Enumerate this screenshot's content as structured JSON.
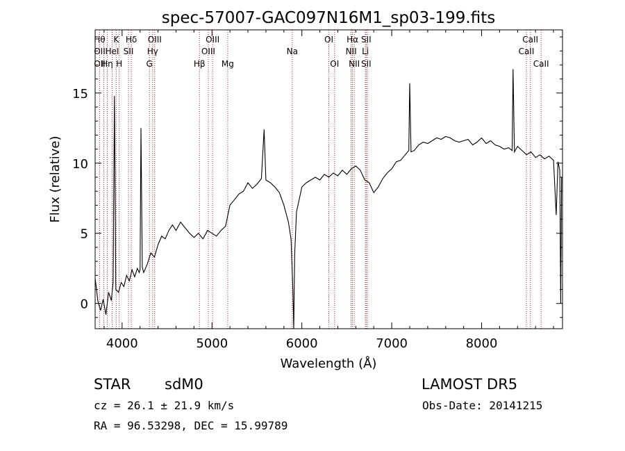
{
  "chart_data": {
    "type": "line",
    "title": "spec-57007-GAC097N16M1_sp03-199.fits",
    "xlabel": "Wavelength (Å)",
    "ylabel": "Flux (relative)",
    "xlim": [
      3700,
      8900
    ],
    "ylim": [
      -1.8,
      19.5
    ],
    "xticks": [
      4000,
      5000,
      6000,
      7000,
      8000
    ],
    "yticks": [
      0,
      5,
      10,
      15
    ],
    "grid": false,
    "series": [
      {
        "values_x": [
          3700,
          3730,
          3760,
          3790,
          3820,
          3850,
          3880,
          3900,
          3915,
          3930,
          3960,
          3990,
          4020,
          4050,
          4080,
          4110,
          4140,
          4170,
          4190,
          4200,
          4210,
          4225,
          4240,
          4280,
          4320,
          4360,
          4400,
          4440,
          4480,
          4520,
          4560,
          4600,
          4650,
          4700,
          4750,
          4800,
          4850,
          4900,
          4950,
          5000,
          5050,
          5100,
          5150,
          5200,
          5250,
          5300,
          5350,
          5400,
          5450,
          5500,
          5550,
          5580,
          5600,
          5650,
          5700,
          5750,
          5800,
          5850,
          5880,
          5900,
          5910,
          5920,
          5940,
          5970,
          6000,
          6050,
          6100,
          6150,
          6200,
          6250,
          6300,
          6350,
          6400,
          6450,
          6500,
          6550,
          6600,
          6650,
          6700,
          6750,
          6800,
          6850,
          6900,
          6950,
          7000,
          7050,
          7100,
          7150,
          7190,
          7200,
          7215,
          7250,
          7300,
          7350,
          7400,
          7450,
          7500,
          7550,
          7600,
          7650,
          7700,
          7750,
          7800,
          7850,
          7900,
          7950,
          8000,
          8050,
          8100,
          8150,
          8200,
          8250,
          8300,
          8340,
          8350,
          8365,
          8400,
          8450,
          8500,
          8550,
          8600,
          8650,
          8700,
          8750,
          8800,
          8830,
          8850,
          8870,
          8880,
          8890
        ],
        "values_y": [
          1.8,
          0.2,
          -0.5,
          0.3,
          -0.8,
          0.8,
          0.2,
          1.5,
          14.8,
          1.0,
          0.8,
          1.5,
          1.2,
          2.0,
          1.6,
          2.4,
          1.9,
          2.5,
          2.2,
          2.4,
          12.5,
          2.6,
          2.2,
          2.8,
          3.6,
          3.3,
          4.2,
          4.8,
          4.6,
          5.2,
          5.6,
          5.2,
          5.8,
          5.4,
          5.0,
          4.7,
          5.0,
          4.6,
          5.2,
          5.0,
          4.8,
          5.2,
          5.5,
          7.0,
          7.4,
          7.8,
          8.0,
          8.6,
          8.2,
          8.5,
          8.9,
          12.4,
          8.8,
          8.6,
          8.3,
          7.9,
          7.0,
          5.8,
          4.6,
          1.0,
          -1.8,
          3.4,
          6.5,
          7.4,
          8.3,
          8.6,
          8.8,
          9.0,
          8.8,
          9.2,
          9.0,
          9.3,
          9.1,
          9.5,
          9.2,
          9.6,
          9.8,
          9.5,
          8.8,
          8.6,
          7.9,
          8.3,
          8.9,
          9.3,
          9.6,
          10.1,
          10.2,
          10.6,
          10.9,
          15.7,
          10.8,
          10.9,
          11.3,
          11.5,
          11.4,
          11.6,
          11.8,
          11.7,
          11.9,
          11.8,
          11.6,
          11.5,
          11.6,
          11.7,
          11.3,
          11.5,
          11.8,
          11.4,
          11.6,
          11.3,
          11.2,
          11.0,
          11.1,
          10.9,
          16.7,
          10.8,
          11.2,
          10.9,
          10.6,
          10.8,
          10.4,
          10.6,
          10.3,
          10.5,
          10.2,
          6.3,
          10.1,
          9.5,
          0.0,
          9.0
        ]
      }
    ],
    "line_markers": [
      {
        "x": 3750,
        "labels": [
          "Hθ",
          "OII",
          "OII"
        ],
        "rows": [
          0,
          1,
          2
        ]
      },
      {
        "x": 3797,
        "labels": []
      },
      {
        "x": 3835,
        "labels": [
          "Hη"
        ],
        "rows": [
          2
        ]
      },
      {
        "x": 3889,
        "labels": [
          "HeI"
        ],
        "rows": [
          1
        ]
      },
      {
        "x": 3934,
        "labels": [
          "K"
        ],
        "rows": [
          0
        ]
      },
      {
        "x": 3968,
        "labels": [
          "H"
        ],
        "rows": [
          2
        ]
      },
      {
        "x": 4071,
        "labels": [
          "SII"
        ],
        "rows": [
          1
        ]
      },
      {
        "x": 4102,
        "labels": [
          "Hδ"
        ],
        "rows": [
          0
        ]
      },
      {
        "x": 4304,
        "labels": [
          "G"
        ],
        "rows": [
          2
        ]
      },
      {
        "x": 4340,
        "labels": [
          "Hγ"
        ],
        "rows": [
          1
        ]
      },
      {
        "x": 4363,
        "labels": [
          "OIII"
        ],
        "rows": [
          0
        ]
      },
      {
        "x": 4861,
        "labels": [
          "Hβ"
        ],
        "rows": [
          2
        ]
      },
      {
        "x": 4959,
        "labels": [
          "OIII"
        ],
        "rows": [
          1
        ]
      },
      {
        "x": 5007,
        "labels": [
          "OIII"
        ],
        "rows": [
          0
        ]
      },
      {
        "x": 5175,
        "labels": [
          "Mg"
        ],
        "rows": [
          2
        ]
      },
      {
        "x": 5893,
        "labels": [
          "Na"
        ],
        "rows": [
          1
        ]
      },
      {
        "x": 6300,
        "labels": [
          "OI"
        ],
        "rows": [
          0
        ]
      },
      {
        "x": 6364,
        "labels": [
          "OI"
        ],
        "rows": [
          2
        ]
      },
      {
        "x": 6548,
        "labels": [
          "NII"
        ],
        "rows": [
          1
        ]
      },
      {
        "x": 6563,
        "labels": [
          "Hα"
        ],
        "rows": [
          0
        ]
      },
      {
        "x": 6583,
        "labels": [
          "NII"
        ],
        "rows": [
          2
        ]
      },
      {
        "x": 6707,
        "labels": [
          "Li"
        ],
        "rows": [
          1
        ]
      },
      {
        "x": 6716,
        "labels": [
          "SII",
          "SII"
        ],
        "rows": [
          0,
          2
        ]
      },
      {
        "x": 6731,
        "labels": []
      },
      {
        "x": 8498,
        "labels": [
          "CaII"
        ],
        "rows": [
          1
        ]
      },
      {
        "x": 8542,
        "labels": [
          "CaII"
        ],
        "rows": [
          0
        ]
      },
      {
        "x": 8662,
        "labels": [
          "CaII"
        ],
        "rows": [
          2
        ]
      }
    ]
  },
  "footer": {
    "class_label": "STAR",
    "subclass": "sdM0",
    "survey": "LAMOST DR5",
    "cz": "cz = 26.1 ± 21.9 km/s",
    "obs_date": "Obs-Date: 20141215",
    "radec": "RA =  96.53298, DEC =  15.99789"
  },
  "colors": {
    "spectrum": "#000000",
    "marker_line": "#b22222",
    "text": "#000000"
  }
}
